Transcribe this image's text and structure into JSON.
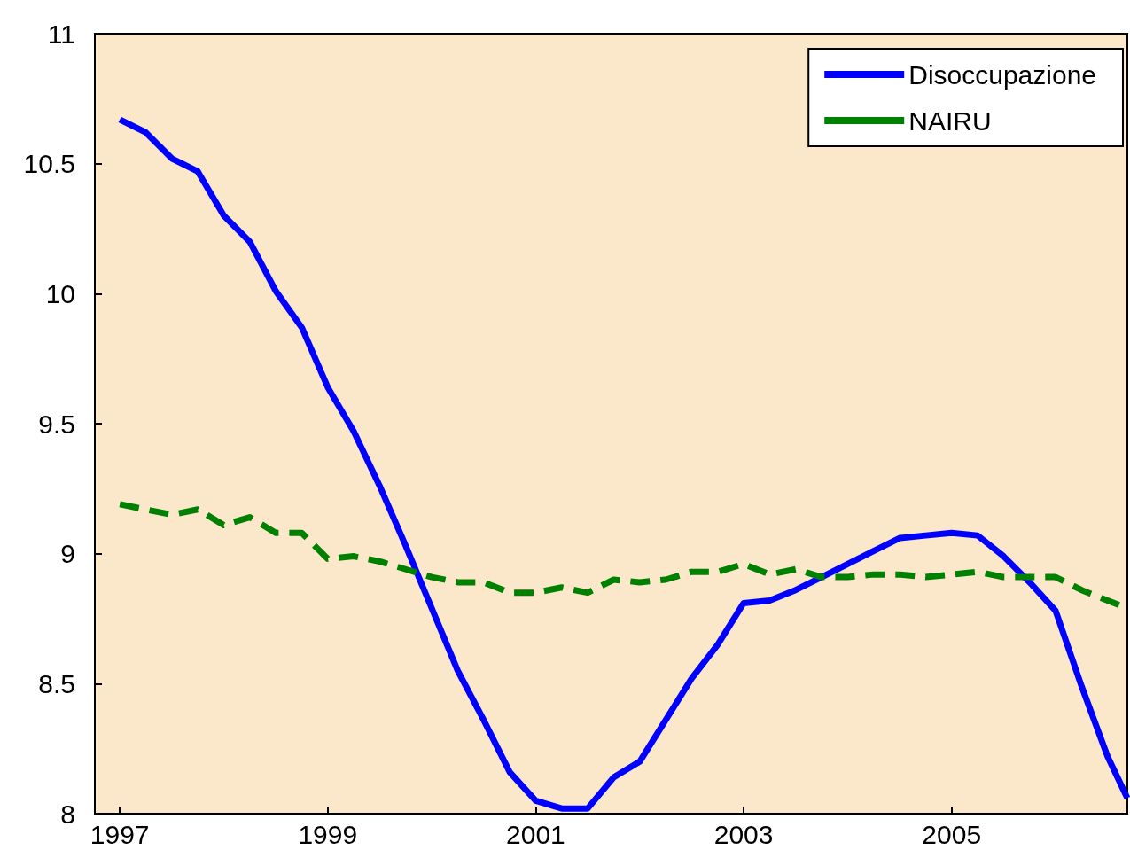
{
  "chart_data": {
    "type": "line",
    "x": [
      1997,
      1997.25,
      1997.5,
      1997.75,
      1998,
      1998.25,
      1998.5,
      1998.75,
      1999,
      1999.25,
      1999.5,
      1999.75,
      2000,
      2000.25,
      2000.5,
      2000.75,
      2001,
      2001.25,
      2001.5,
      2001.75,
      2002,
      2002.25,
      2002.5,
      2002.75,
      2003,
      2003.25,
      2003.5,
      2003.75,
      2004,
      2004.25,
      2004.5,
      2004.75,
      2005,
      2005.25,
      2005.5,
      2005.75,
      2006,
      2006.25,
      2006.5,
      2006.69
    ],
    "series": [
      {
        "name": "Disoccupazione",
        "color": "#0000ff",
        "line_style": "solid",
        "values": [
          10.67,
          10.62,
          10.52,
          10.47,
          10.3,
          10.2,
          10.01,
          9.87,
          9.64,
          9.47,
          9.26,
          9.03,
          8.79,
          8.55,
          8.36,
          8.16,
          8.05,
          8.02,
          8.02,
          8.14,
          8.2,
          8.36,
          8.52,
          8.65,
          8.81,
          8.82,
          8.86,
          8.91,
          8.96,
          9.01,
          9.06,
          9.07,
          9.08,
          9.07,
          8.99,
          8.89,
          8.78,
          8.49,
          8.22,
          8.06
        ]
      },
      {
        "name": "NAIRU",
        "color": "#008000",
        "line_style": "dashed",
        "values": [
          9.19,
          9.17,
          9.15,
          9.17,
          9.11,
          9.14,
          9.08,
          9.08,
          8.98,
          8.99,
          8.97,
          8.94,
          8.91,
          8.89,
          8.89,
          8.85,
          8.85,
          8.87,
          8.85,
          8.9,
          8.89,
          8.9,
          8.93,
          8.93,
          8.96,
          8.92,
          8.94,
          8.91,
          8.91,
          8.92,
          8.92,
          8.91,
          8.92,
          8.93,
          8.91,
          8.91,
          8.91,
          8.86,
          8.82,
          8.79
        ]
      }
    ],
    "xlim": [
      1996.76,
      2006.69
    ],
    "xticks": [
      1997,
      1999,
      2001,
      2003,
      2005
    ],
    "ylim": [
      8,
      11
    ],
    "yticks": [
      8,
      8.5,
      9,
      9.5,
      10,
      10.5,
      11
    ],
    "grid": false,
    "legend": "top right",
    "marker": "none"
  }
}
